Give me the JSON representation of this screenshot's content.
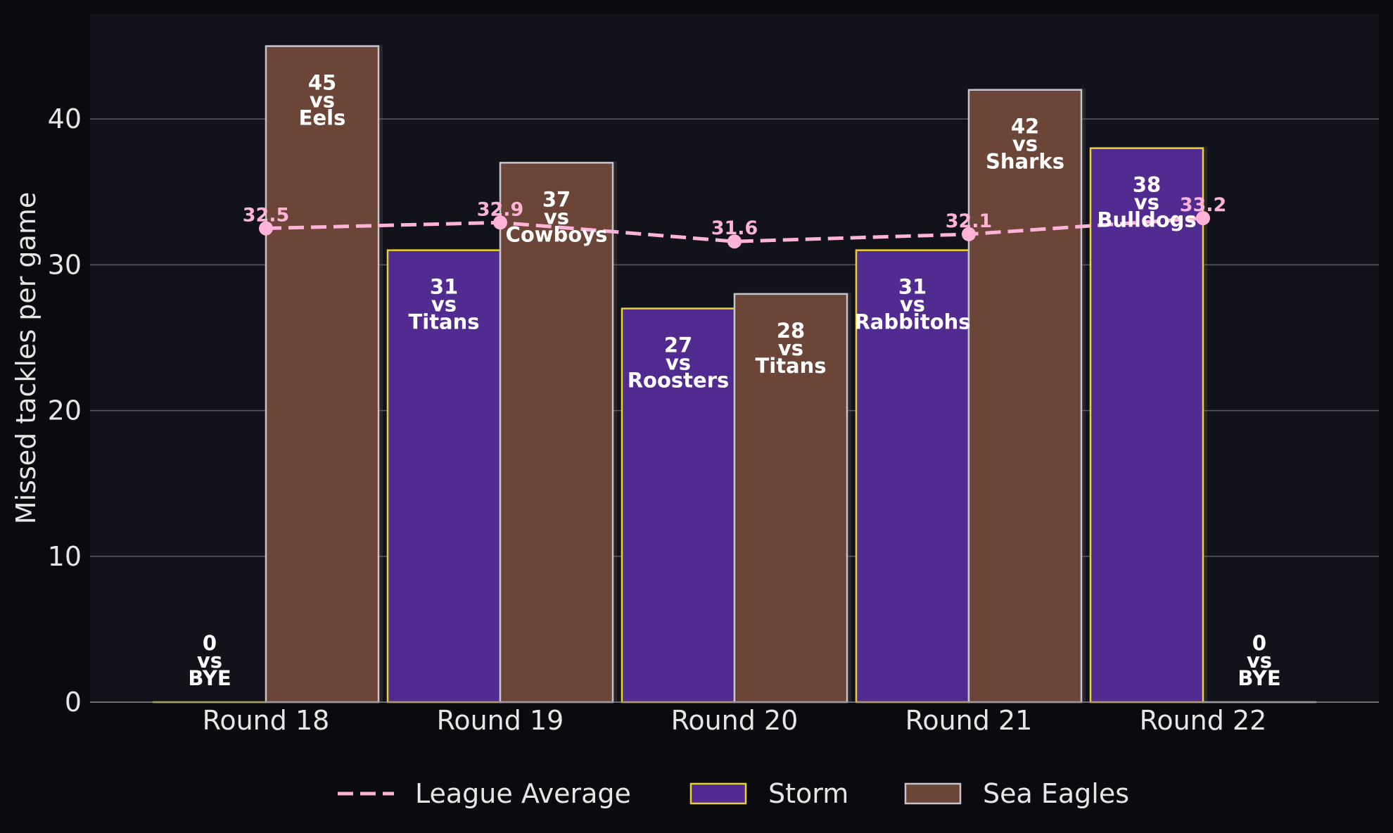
{
  "chart_data": {
    "type": "bar",
    "title": "",
    "xlabel": "",
    "ylabel": "Missed tackles per game",
    "ylim": [
      0,
      47.2
    ],
    "yticks": [
      "0",
      "10",
      "20",
      "30",
      "40"
    ],
    "grid": "horizontal",
    "legend_placement": "bottom-center",
    "categories": [
      "Round 18",
      "Round 19",
      "Round 20",
      "Round 21",
      "Round 22"
    ],
    "series": [
      {
        "name": "Storm",
        "color": "#522b91",
        "edge_color": "#e8d02e",
        "values": [
          0,
          31,
          27,
          31,
          38
        ],
        "opponents": [
          "BYE",
          "Titans",
          "Roosters",
          "Rabbitohs",
          "Bulldogs"
        ],
        "vs_text": "vs"
      },
      {
        "name": "Sea Eagles",
        "color": "#6a4538",
        "edge_color": "#c4c4cc",
        "values": [
          45,
          37,
          28,
          42,
          0
        ],
        "opponents": [
          "Eels",
          "Cowboys",
          "Titans",
          "Sharks",
          "BYE"
        ],
        "vs_text": "vs"
      }
    ],
    "average": {
      "name": "League Average",
      "color": "#ffb3d9",
      "style": "dashed",
      "values": [
        32.5,
        32.9,
        31.6,
        32.1,
        33.2
      ],
      "labels": [
        "32.5",
        "32.9",
        "31.6",
        "32.1",
        "33.2"
      ]
    }
  },
  "colors": {
    "background": "#0b0b0f",
    "plot_background": "#12121b",
    "grid": "#5a5a62"
  }
}
